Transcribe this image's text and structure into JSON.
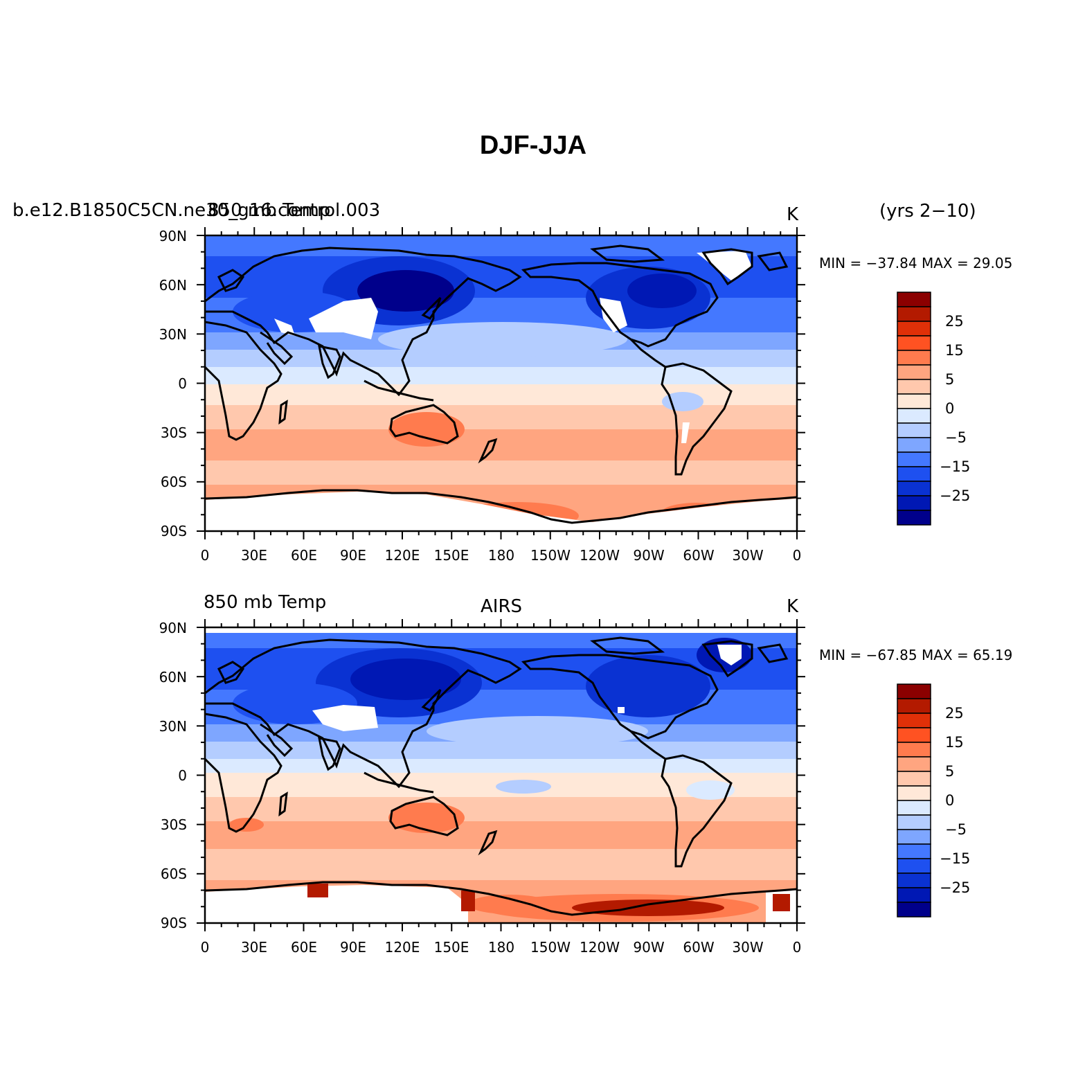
{
  "figure": {
    "title": "DJF-JJA",
    "top_right_note": "(yrs 2−10)"
  },
  "axes": {
    "lat_ticks": [
      "90N",
      "60N",
      "30N",
      "0",
      "30S",
      "60S",
      "90S"
    ],
    "lon_ticks": [
      "0",
      "30E",
      "60E",
      "90E",
      "120E",
      "150E",
      "180",
      "150W",
      "120W",
      "90W",
      "60W",
      "30W",
      "0"
    ]
  },
  "colorbar": {
    "colors": [
      "#00008b",
      "#0018b4",
      "#0a32d2",
      "#1e50f0",
      "#4478ff",
      "#7ea6ff",
      "#b4cdff",
      "#dbeaff",
      "#ffe8d8",
      "#ffc8ad",
      "#ffa580",
      "#ff7b4e",
      "#ff5222",
      "#e03008",
      "#b31a00",
      "#8b0000"
    ],
    "labels": [
      "25",
      "15",
      "5",
      "0",
      "−5",
      "−15",
      "−25"
    ]
  },
  "panels": [
    {
      "left_label": "b.e12.B1850C5CN.ne30_g16.control.003",
      "left_label_overlap": "850 mb Temp",
      "center_label": "",
      "units": "K",
      "stats": "MIN = −37.84  MAX =   29.05"
    },
    {
      "left_label": "850  mb  Temp",
      "center_label": "AIRS",
      "units": "K",
      "stats": "MIN = −67.85  MAX =   65.19"
    }
  ]
}
